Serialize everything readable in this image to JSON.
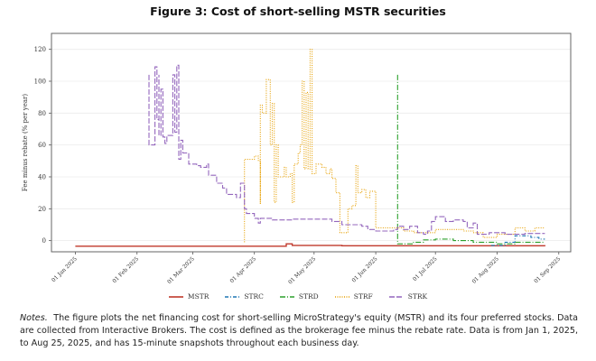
{
  "figure_title": "Figure 3:  Cost of short-selling MSTR securities",
  "notes": {
    "label": "Notes.",
    "text": "The figure plots the net financing cost for short-selling MicroStrategy's equity (MSTR) and its four preferred stocks. Data are collected from Interactive Brokers. The cost is defined as the brokerage fee minus the rebate rate. Data is from Jan 1, 2025, to Aug 25, 2025, and has 15-minute snapshots throughout each business day."
  },
  "chart_data": {
    "type": "line",
    "title": "",
    "xlabel": "",
    "ylabel": "Fee minus rebate (% per year)",
    "xlim": [
      "2024-12-20",
      "2025-09-07"
    ],
    "ylim": [
      -7,
      130
    ],
    "yticks": [
      0,
      20,
      40,
      60,
      80,
      100,
      120
    ],
    "xticks": [
      {
        "date": "2025-01-01",
        "label": "01 Jan 2025"
      },
      {
        "date": "2025-02-01",
        "label": "01 Feb 2025"
      },
      {
        "date": "2025-03-01",
        "label": "01 Mar 2025"
      },
      {
        "date": "2025-04-01",
        "label": "01 Apr 2025"
      },
      {
        "date": "2025-05-01",
        "label": "01 May 2025"
      },
      {
        "date": "2025-06-01",
        "label": "01 Jun 2025"
      },
      {
        "date": "2025-07-01",
        "label": "01 Jul 2025"
      },
      {
        "date": "2025-08-01",
        "label": "01 Aug 2025"
      },
      {
        "date": "2025-09-01",
        "label": "01 Sep 2025"
      }
    ],
    "grid": "horizontal",
    "legend_position": "bottom",
    "series": [
      {
        "name": "MSTR",
        "color": "#c0392b",
        "dash": "solid",
        "points": [
          [
            "2025-01-01",
            -3.5
          ],
          [
            "2025-04-16",
            -3.5
          ],
          [
            "2025-04-17",
            -2
          ],
          [
            "2025-04-20",
            -3
          ],
          [
            "2025-05-15",
            -3.2
          ],
          [
            "2025-08-25",
            -3.5
          ]
        ]
      },
      {
        "name": "STRC",
        "color": "#1f77b4",
        "dash": "dashed",
        "points": [
          [
            "2025-07-29",
            -3
          ],
          [
            "2025-08-05",
            -1
          ],
          [
            "2025-08-10",
            3
          ],
          [
            "2025-08-18",
            2
          ],
          [
            "2025-08-22",
            1
          ],
          [
            "2025-08-25",
            1
          ]
        ]
      },
      {
        "name": "STRD",
        "color": "#2ca02c",
        "dash": "dashdot",
        "points": [
          [
            "2025-06-12",
            104
          ],
          [
            "2025-06-12",
            -2
          ],
          [
            "2025-06-20",
            -1
          ],
          [
            "2025-06-25",
            0.5
          ],
          [
            "2025-07-01",
            1
          ],
          [
            "2025-07-10",
            0
          ],
          [
            "2025-07-20",
            -1
          ],
          [
            "2025-08-01",
            -2
          ],
          [
            "2025-08-10",
            -1
          ],
          [
            "2025-08-25",
            -1
          ]
        ]
      },
      {
        "name": "STRF",
        "color": "#e69f00",
        "dash": "dotted",
        "points": [
          [
            "2025-03-27",
            -1
          ],
          [
            "2025-03-27",
            51
          ],
          [
            "2025-04-01",
            53
          ],
          [
            "2025-04-03",
            50
          ],
          [
            "2025-04-04",
            23
          ],
          [
            "2025-04-04",
            85
          ],
          [
            "2025-04-05",
            80
          ],
          [
            "2025-04-07",
            101
          ],
          [
            "2025-04-09",
            60
          ],
          [
            "2025-04-10",
            86
          ],
          [
            "2025-04-11",
            24
          ],
          [
            "2025-04-12",
            60
          ],
          [
            "2025-04-13",
            40
          ],
          [
            "2025-04-16",
            46
          ],
          [
            "2025-04-17",
            40
          ],
          [
            "2025-04-19",
            42
          ],
          [
            "2025-04-20",
            24
          ],
          [
            "2025-04-21",
            48
          ],
          [
            "2025-04-23",
            55
          ],
          [
            "2025-04-24",
            60
          ],
          [
            "2025-04-25",
            100
          ],
          [
            "2025-04-26",
            45
          ],
          [
            "2025-04-27",
            93
          ],
          [
            "2025-04-28",
            45
          ],
          [
            "2025-04-29",
            120
          ],
          [
            "2025-04-30",
            42
          ],
          [
            "2025-05-02",
            48
          ],
          [
            "2025-05-05",
            46
          ],
          [
            "2025-05-07",
            42
          ],
          [
            "2025-05-09",
            45
          ],
          [
            "2025-05-10",
            39
          ],
          [
            "2025-05-12",
            30
          ],
          [
            "2025-05-14",
            5
          ],
          [
            "2025-05-18",
            20
          ],
          [
            "2025-05-20",
            22
          ],
          [
            "2025-05-22",
            47
          ],
          [
            "2025-05-23",
            30
          ],
          [
            "2025-05-25",
            32
          ],
          [
            "2025-05-27",
            27
          ],
          [
            "2025-05-29",
            31
          ],
          [
            "2025-06-01",
            8
          ],
          [
            "2025-06-12",
            8
          ],
          [
            "2025-06-15",
            6
          ],
          [
            "2025-06-20",
            5
          ],
          [
            "2025-07-01",
            7
          ],
          [
            "2025-07-15",
            6
          ],
          [
            "2025-07-20",
            5
          ],
          [
            "2025-07-25",
            2
          ],
          [
            "2025-08-01",
            4
          ],
          [
            "2025-08-10",
            8
          ],
          [
            "2025-08-15",
            6
          ],
          [
            "2025-08-20",
            8
          ],
          [
            "2025-08-25",
            8
          ]
        ]
      },
      {
        "name": "STRK",
        "color": "#9467bd",
        "dash": "longdash",
        "points": [
          [
            "2025-02-07",
            104
          ],
          [
            "2025-02-07",
            60
          ],
          [
            "2025-02-10",
            60
          ],
          [
            "2025-02-10",
            109
          ],
          [
            "2025-02-11",
            76
          ],
          [
            "2025-02-12",
            104
          ],
          [
            "2025-02-12",
            66
          ],
          [
            "2025-02-13",
            95
          ],
          [
            "2025-02-14",
            65
          ],
          [
            "2025-02-15",
            61
          ],
          [
            "2025-02-16",
            66
          ],
          [
            "2025-02-19",
            66
          ],
          [
            "2025-02-19",
            104
          ],
          [
            "2025-02-20",
            68
          ],
          [
            "2025-02-21",
            110
          ],
          [
            "2025-02-22",
            51
          ],
          [
            "2025-02-23",
            63
          ],
          [
            "2025-02-24",
            55
          ],
          [
            "2025-02-27",
            48
          ],
          [
            "2025-03-03",
            47
          ],
          [
            "2025-03-05",
            46
          ],
          [
            "2025-03-08",
            48
          ],
          [
            "2025-03-09",
            41
          ],
          [
            "2025-03-13",
            36
          ],
          [
            "2025-03-16",
            33
          ],
          [
            "2025-03-18",
            29
          ],
          [
            "2025-03-21",
            29
          ],
          [
            "2025-03-23",
            27
          ],
          [
            "2025-03-25",
            36
          ],
          [
            "2025-03-27",
            20
          ],
          [
            "2025-03-28",
            17
          ],
          [
            "2025-04-01",
            14
          ],
          [
            "2025-04-03",
            11
          ],
          [
            "2025-04-04",
            14
          ],
          [
            "2025-04-10",
            13
          ],
          [
            "2025-04-20",
            13.5
          ],
          [
            "2025-05-01",
            13.5
          ],
          [
            "2025-05-10",
            12
          ],
          [
            "2025-05-15",
            10
          ],
          [
            "2025-05-25",
            9
          ],
          [
            "2025-05-28",
            7
          ],
          [
            "2025-06-01",
            6
          ],
          [
            "2025-06-10",
            7
          ],
          [
            "2025-06-12",
            9
          ],
          [
            "2025-06-15",
            7
          ],
          [
            "2025-06-18",
            9
          ],
          [
            "2025-06-22",
            5
          ],
          [
            "2025-06-25",
            4
          ],
          [
            "2025-06-27",
            6
          ],
          [
            "2025-06-29",
            12
          ],
          [
            "2025-07-01",
            15
          ],
          [
            "2025-07-06",
            12
          ],
          [
            "2025-07-10",
            13
          ],
          [
            "2025-07-15",
            12
          ],
          [
            "2025-07-17",
            8
          ],
          [
            "2025-07-20",
            11
          ],
          [
            "2025-07-22",
            4
          ],
          [
            "2025-07-28",
            5
          ],
          [
            "2025-08-05",
            4
          ],
          [
            "2025-08-15",
            4.5
          ],
          [
            "2025-08-25",
            4.5
          ]
        ]
      }
    ]
  }
}
